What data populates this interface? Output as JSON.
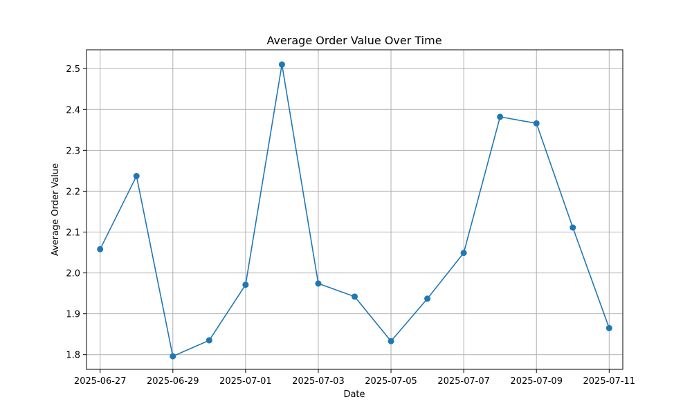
{
  "chart_data": {
    "type": "line",
    "title": "Average Order Value Over Time",
    "xlabel": "Date",
    "ylabel": "Average Order Value",
    "x": [
      "2025-06-27",
      "2025-06-28",
      "2025-06-29",
      "2025-06-30",
      "2025-07-01",
      "2025-07-02",
      "2025-07-03",
      "2025-07-04",
      "2025-07-05",
      "2025-07-06",
      "2025-07-07",
      "2025-07-08",
      "2025-07-09",
      "2025-07-10",
      "2025-07-11"
    ],
    "series": [
      {
        "values": [
          2.058,
          2.237,
          1.796,
          1.835,
          1.971,
          2.51,
          1.974,
          1.942,
          1.833,
          1.937,
          2.049,
          2.382,
          2.366,
          2.111,
          1.865
        ]
      }
    ],
    "x_ticks": [
      "2025-06-27",
      "2025-06-29",
      "2025-07-01",
      "2025-07-03",
      "2025-07-05",
      "2025-07-07",
      "2025-07-09",
      "2025-07-11"
    ],
    "y_ticks": [
      1.8,
      1.9,
      2.0,
      2.1,
      2.2,
      2.3,
      2.4,
      2.5
    ],
    "xlim": [
      "2025-06-26T15:00",
      "2025-07-11T09:00"
    ],
    "ylim": [
      1.764,
      2.546
    ],
    "grid": true,
    "line_color": "#1f77b4",
    "marker": "circle"
  }
}
